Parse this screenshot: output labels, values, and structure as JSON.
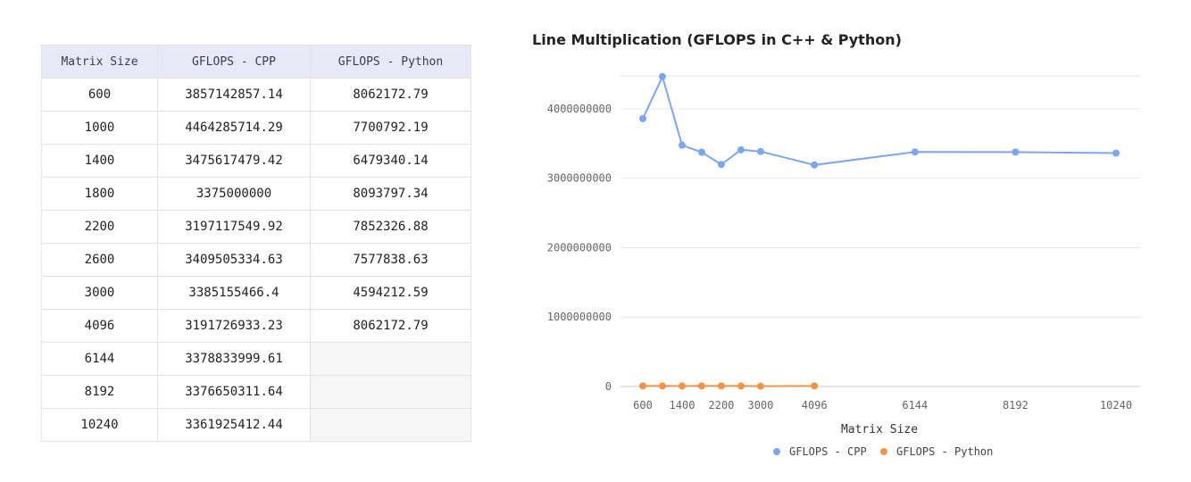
{
  "table": {
    "headers": [
      "Matrix Size",
      "GFLOPS - CPP",
      "GFLOPS - Python"
    ],
    "rows": [
      [
        "600",
        "3857142857.14",
        "8062172.79"
      ],
      [
        "1000",
        "4464285714.29",
        "7700792.19"
      ],
      [
        "1400",
        "3475617479.42",
        "6479340.14"
      ],
      [
        "1800",
        "3375000000",
        "8093797.34"
      ],
      [
        "2200",
        "3197117549.92",
        "7852326.88"
      ],
      [
        "2600",
        "3409505334.63",
        "7577838.63"
      ],
      [
        "3000",
        "3385155466.4",
        "4594212.59"
      ],
      [
        "4096",
        "3191726933.23",
        "8062172.79"
      ],
      [
        "6144",
        "3378833999.61",
        ""
      ],
      [
        "8192",
        "3376650311.64",
        ""
      ],
      [
        "10240",
        "3361925412.44",
        ""
      ]
    ]
  },
  "chart_data": {
    "type": "line",
    "title": "Line Multiplication (GFLOPS in C++ & Python)",
    "xlabel": "Matrix Size",
    "ylabel": "",
    "ylim": [
      0,
      4500000000
    ],
    "yticks": [
      0,
      1000000000,
      2000000000,
      3000000000,
      4000000000
    ],
    "xticks": [
      600,
      1400,
      2200,
      3000,
      4096,
      6144,
      8192,
      10240
    ],
    "grid": true,
    "legend": "bottom",
    "series": [
      {
        "name": "GFLOPS - CPP",
        "color": "#7ea5ee",
        "x": [
          600,
          1000,
          1400,
          1800,
          2200,
          2600,
          3000,
          4096,
          6144,
          8192,
          10240
        ],
        "values": [
          3857142857.14,
          4464285714.29,
          3475617479.42,
          3375000000,
          3197117549.92,
          3409505334.63,
          3385155466.4,
          3191726933.23,
          3378833999.61,
          3376650311.64,
          3361925412.44
        ]
      },
      {
        "name": "GFLOPS - Python",
        "color": "#f0944a",
        "x": [
          600,
          1000,
          1400,
          1800,
          2200,
          2600,
          3000,
          4096
        ],
        "values": [
          8062172.79,
          7700792.19,
          6479340.14,
          8093797.34,
          7852326.88,
          7577838.63,
          4594212.59,
          8062172.79
        ]
      }
    ]
  }
}
